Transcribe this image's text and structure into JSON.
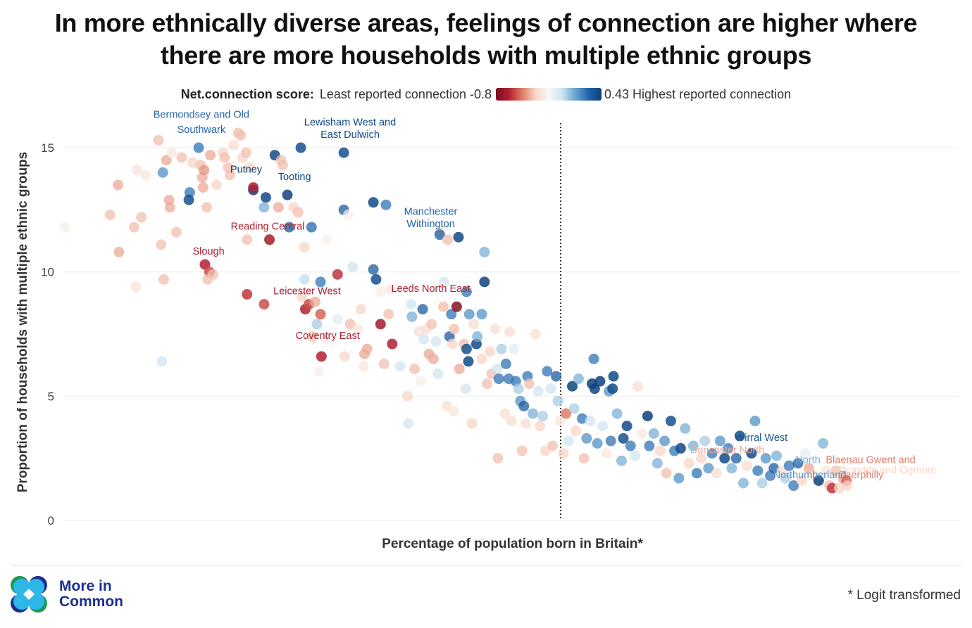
{
  "title_line1": "In more ethnically diverse areas, feelings of connection are higher where",
  "title_line2": "there are more households with multiple ethnic groups",
  "legend": {
    "label": "Net.connection score:",
    "low_text": "Least reported connection -0.8",
    "high_text": "0.43 Highest reported connection",
    "min": -0.8,
    "max": 0.43
  },
  "footer": {
    "logo_line1": "More in",
    "logo_line2": "Common",
    "footnote": "* Logit transformed"
  },
  "colors": {
    "scale": [
      "#7a0c22",
      "#b2202f",
      "#e07d68",
      "#f8d6c5",
      "#f7f7f7",
      "#cfe4f0",
      "#6aa7d0",
      "#2166ac",
      "#0d3f7a"
    ],
    "logo_navy": "#1c2f8c",
    "logo_green": "#1a9a5a",
    "logo_cyan": "#2db7e8"
  },
  "chart_data": {
    "type": "scatter",
    "title": "In more ethnically diverse areas, feelings of connection are higher where there are more households with multiple ethnic groups",
    "xlabel": "Percentage of population born in Britain*",
    "ylabel": "Proportion of households with multiple ethnic groups",
    "x_note": "x is logit-transformed, no tick labels shown; values given as relative position 0-100 along the axis",
    "xlim": [
      0,
      100
    ],
    "ylim": [
      0,
      16
    ],
    "yticks": [
      0,
      5,
      10,
      15
    ],
    "grid": "horizontal",
    "reference_line_x": 55.5,
    "color_variable": "Net.connection score",
    "color_range": [
      -0.8,
      0.43
    ],
    "legend_position": "top-center",
    "point_fields": [
      "x",
      "y",
      "score"
    ],
    "points": [
      [
        0.2,
        11.8,
        -0.05
      ],
      [
        5.2,
        12.3,
        -0.25
      ],
      [
        6.1,
        13.5,
        -0.3
      ],
      [
        6.2,
        10.8,
        -0.3
      ],
      [
        7.9,
        11.8,
        -0.25
      ],
      [
        8.2,
        14.1,
        -0.12
      ],
      [
        8.1,
        9.4,
        -0.12
      ],
      [
        8.7,
        12.2,
        -0.25
      ],
      [
        9.2,
        13.9,
        -0.1
      ],
      [
        10.6,
        15.3,
        -0.25
      ],
      [
        10.9,
        11.1,
        -0.25
      ],
      [
        11.2,
        9.7,
        -0.25
      ],
      [
        11.0,
        6.4,
        0.1
      ],
      [
        11.1,
        14.0,
        0.25
      ],
      [
        11.5,
        14.5,
        -0.3
      ],
      [
        11.8,
        12.9,
        -0.3
      ],
      [
        11.9,
        12.6,
        -0.3
      ],
      [
        12.1,
        14.8,
        -0.1
      ],
      [
        12.6,
        11.6,
        -0.25
      ],
      [
        13.2,
        14.6,
        -0.25
      ],
      [
        14.1,
        13.2,
        0.3
      ],
      [
        14.0,
        12.9,
        0.38
      ],
      [
        14.4,
        14.4,
        -0.2
      ],
      [
        15.1,
        15.0,
        0.3
      ],
      [
        15.3,
        14.3,
        -0.25
      ],
      [
        15.5,
        13.8,
        -0.3
      ],
      [
        15.7,
        14.1,
        -0.35
      ],
      [
        15.6,
        13.4,
        -0.3
      ],
      [
        15.8,
        10.3,
        -0.6
      ],
      [
        16.3,
        10.0,
        -0.5
      ],
      [
        16.1,
        9.7,
        -0.25
      ],
      [
        16.0,
        12.6,
        -0.25
      ],
      [
        16.4,
        14.7,
        -0.3
      ],
      [
        16.7,
        9.9,
        -0.25
      ],
      [
        17.1,
        13.5,
        -0.2
      ],
      [
        17.8,
        14.8,
        -0.2
      ],
      [
        18.0,
        14.6,
        -0.25
      ],
      [
        18.4,
        14.2,
        -0.25
      ],
      [
        18.6,
        13.9,
        -0.25
      ],
      [
        19.0,
        15.1,
        -0.15
      ],
      [
        19.5,
        15.6,
        -0.25
      ],
      [
        19.8,
        15.5,
        -0.25
      ],
      [
        20.0,
        14.6,
        -0.2
      ],
      [
        20.4,
        14.8,
        -0.25
      ],
      [
        20.5,
        9.1,
        -0.55
      ],
      [
        20.5,
        11.3,
        -0.25
      ],
      [
        20.8,
        14.2,
        -0.2
      ],
      [
        21.2,
        13.3,
        0.43
      ],
      [
        21.2,
        13.4,
        -0.6
      ],
      [
        22.6,
        13.0,
        0.4
      ],
      [
        22.4,
        12.6,
        0.2
      ],
      [
        22.4,
        8.7,
        -0.5
      ],
      [
        23.0,
        11.3,
        -0.65
      ],
      [
        23.6,
        14.7,
        0.4
      ],
      [
        24.0,
        12.6,
        -0.3
      ],
      [
        24.3,
        14.5,
        -0.25
      ],
      [
        24.5,
        14.3,
        -0.25
      ],
      [
        25.0,
        13.1,
        0.42
      ],
      [
        25.2,
        11.8,
        0.35
      ],
      [
        25.7,
        12.6,
        -0.2
      ],
      [
        26.2,
        12.4,
        -0.25
      ],
      [
        26.6,
        9.0,
        -0.2
      ],
      [
        26.9,
        9.7,
        0.12
      ],
      [
        26.9,
        11.0,
        -0.2
      ],
      [
        26.5,
        15.0,
        0.38
      ],
      [
        27.0,
        8.5,
        -0.6
      ],
      [
        27.4,
        8.7,
        -0.5
      ],
      [
        27.7,
        11.8,
        0.32
      ],
      [
        27.8,
        7.4,
        -0.25
      ],
      [
        28.1,
        8.8,
        -0.3
      ],
      [
        28.3,
        7.9,
        0.15
      ],
      [
        28.7,
        8.3,
        -0.45
      ],
      [
        28.7,
        9.6,
        0.3
      ],
      [
        28.5,
        6.0,
        -0.05
      ],
      [
        28.8,
        6.6,
        -0.6
      ],
      [
        29.4,
        11.3,
        -0.05
      ],
      [
        29.3,
        7.3,
        -0.05
      ],
      [
        30.6,
        9.9,
        -0.55
      ],
      [
        30.6,
        8.1,
        0.05
      ],
      [
        31.3,
        12.5,
        0.35
      ],
      [
        31.3,
        14.8,
        0.38
      ],
      [
        31.8,
        12.3,
        -0.05
      ],
      [
        31.4,
        6.6,
        -0.2
      ],
      [
        32.0,
        7.9,
        -0.25
      ],
      [
        32.3,
        10.2,
        0.1
      ],
      [
        32.9,
        7.7,
        -0.1
      ],
      [
        33.2,
        8.5,
        -0.2
      ],
      [
        33.5,
        6.2,
        -0.1
      ],
      [
        33.6,
        6.7,
        -0.3
      ],
      [
        33.9,
        6.9,
        -0.3
      ],
      [
        34.6,
        10.1,
        0.35
      ],
      [
        34.6,
        12.8,
        0.4
      ],
      [
        34.9,
        9.7,
        0.38
      ],
      [
        35.4,
        7.9,
        -0.65
      ],
      [
        35.4,
        9.2,
        -0.05
      ],
      [
        35.8,
        6.3,
        -0.25
      ],
      [
        36.0,
        12.7,
        0.3
      ],
      [
        36.7,
        7.1,
        -0.6
      ],
      [
        36.5,
        9.3,
        -0.1
      ],
      [
        36.3,
        8.3,
        -0.25
      ],
      [
        37.6,
        6.2,
        0.1
      ],
      [
        38.4,
        5.0,
        -0.2
      ],
      [
        38.5,
        3.9,
        0.1
      ],
      [
        38.8,
        8.7,
        0.1
      ],
      [
        38.9,
        8.2,
        0.2
      ],
      [
        39.2,
        6.1,
        -0.25
      ],
      [
        39.7,
        7.6,
        -0.15
      ],
      [
        39.9,
        5.6,
        -0.05
      ],
      [
        40.1,
        8.5,
        0.35
      ],
      [
        40.2,
        7.3,
        0.1
      ],
      [
        40.5,
        7.7,
        -0.15
      ],
      [
        40.8,
        6.7,
        -0.3
      ],
      [
        41.1,
        7.9,
        -0.25
      ],
      [
        41.3,
        6.5,
        -0.3
      ],
      [
        41.6,
        7.2,
        0.1
      ],
      [
        41.8,
        5.9,
        0.1
      ],
      [
        42.0,
        11.6,
        -0.2
      ],
      [
        42.0,
        11.5,
        0.35
      ],
      [
        42.4,
        8.6,
        -0.25
      ],
      [
        42.5,
        9.6,
        0.1
      ],
      [
        42.8,
        4.6,
        -0.15
      ],
      [
        42.9,
        11.3,
        -0.25
      ],
      [
        43.1,
        7.4,
        0.35
      ],
      [
        43.3,
        8.3,
        0.3
      ],
      [
        43.4,
        7.1,
        -0.2
      ],
      [
        43.6,
        4.4,
        -0.1
      ],
      [
        43.6,
        7.7,
        -0.25
      ],
      [
        43.9,
        8.6,
        -0.75
      ],
      [
        44.1,
        11.4,
        0.4
      ],
      [
        44.2,
        6.1,
        -0.3
      ],
      [
        44.7,
        7.1,
        -0.25
      ],
      [
        44.9,
        5.3,
        0.1
      ],
      [
        45.0,
        6.9,
        0.38
      ],
      [
        45.0,
        9.2,
        0.3
      ],
      [
        45.2,
        6.4,
        0.4
      ],
      [
        45.3,
        8.3,
        0.25
      ],
      [
        45.6,
        3.9,
        -0.2
      ],
      [
        45.8,
        7.9,
        -0.15
      ],
      [
        46.1,
        7.1,
        0.4
      ],
      [
        46.2,
        7.4,
        0.2
      ],
      [
        46.7,
        8.3,
        0.25
      ],
      [
        46.7,
        6.5,
        -0.2
      ],
      [
        47.0,
        9.6,
        0.42
      ],
      [
        47.0,
        10.8,
        0.2
      ],
      [
        47.3,
        5.5,
        -0.25
      ],
      [
        47.6,
        6.8,
        -0.2
      ],
      [
        47.8,
        5.9,
        -0.25
      ],
      [
        48.2,
        7.7,
        -0.15
      ],
      [
        48.4,
        6.1,
        0.1
      ],
      [
        48.5,
        2.5,
        -0.25
      ],
      [
        48.6,
        5.7,
        0.3
      ],
      [
        48.9,
        6.9,
        0.15
      ],
      [
        49.3,
        4.3,
        -0.15
      ],
      [
        49.4,
        6.3,
        0.3
      ],
      [
        49.7,
        5.7,
        0.3
      ],
      [
        49.8,
        7.6,
        -0.15
      ],
      [
        50.0,
        4.0,
        -0.15
      ],
      [
        50.3,
        6.9,
        0.05
      ],
      [
        50.5,
        5.6,
        0.3
      ],
      [
        50.8,
        5.3,
        0.15
      ],
      [
        51.0,
        4.8,
        0.25
      ],
      [
        51.2,
        2.8,
        -0.25
      ],
      [
        51.4,
        4.6,
        0.35
      ],
      [
        51.6,
        3.9,
        -0.15
      ],
      [
        51.8,
        5.8,
        0.3
      ],
      [
        52.0,
        5.5,
        -0.25
      ],
      [
        52.4,
        4.3,
        0.2
      ],
      [
        52.7,
        7.5,
        -0.15
      ],
      [
        53.0,
        5.2,
        0.1
      ],
      [
        53.2,
        3.8,
        -0.2
      ],
      [
        53.5,
        4.2,
        0.15
      ],
      [
        53.8,
        2.8,
        -0.2
      ],
      [
        54.0,
        6.0,
        0.3
      ],
      [
        54.4,
        5.3,
        0.1
      ],
      [
        54.6,
        3.0,
        -0.25
      ],
      [
        55.0,
        5.8,
        0.35
      ],
      [
        55.2,
        4.8,
        0.15
      ],
      [
        55.4,
        4.0,
        -0.1
      ],
      [
        55.8,
        2.7,
        -0.2
      ],
      [
        56.1,
        4.3,
        -0.4
      ],
      [
        56.4,
        3.2,
        0.1
      ],
      [
        56.8,
        5.4,
        0.42
      ],
      [
        57.0,
        4.5,
        0.15
      ],
      [
        57.2,
        3.6,
        -0.2
      ],
      [
        57.5,
        5.7,
        0.2
      ],
      [
        57.9,
        4.1,
        0.3
      ],
      [
        58.1,
        2.5,
        -0.25
      ],
      [
        58.4,
        3.3,
        0.25
      ],
      [
        58.8,
        4.0,
        0.1
      ],
      [
        59.0,
        5.5,
        0.43
      ],
      [
        59.2,
        6.5,
        0.3
      ],
      [
        59.3,
        5.3,
        0.42
      ],
      [
        59.6,
        3.1,
        0.25
      ],
      [
        59.9,
        5.6,
        0.42
      ],
      [
        60.2,
        3.8,
        0.1
      ],
      [
        60.6,
        2.7,
        -0.1
      ],
      [
        60.9,
        5.2,
        0.25
      ],
      [
        61.1,
        3.2,
        0.3
      ],
      [
        61.3,
        5.3,
        0.4
      ],
      [
        61.4,
        5.8,
        0.4
      ],
      [
        61.8,
        4.3,
        0.2
      ],
      [
        62.3,
        2.4,
        0.2
      ],
      [
        62.5,
        3.3,
        0.38
      ],
      [
        62.9,
        3.8,
        0.4
      ],
      [
        63.3,
        3.0,
        0.3
      ],
      [
        63.8,
        2.6,
        0.1
      ],
      [
        64.1,
        5.4,
        -0.15
      ],
      [
        64.6,
        3.5,
        -0.1
      ],
      [
        65.2,
        4.2,
        0.43
      ],
      [
        65.4,
        3.0,
        0.3
      ],
      [
        65.9,
        3.5,
        0.2
      ],
      [
        66.3,
        2.3,
        0.2
      ],
      [
        66.6,
        2.8,
        -0.2
      ],
      [
        67.1,
        3.2,
        0.25
      ],
      [
        67.3,
        1.9,
        -0.25
      ],
      [
        67.8,
        4.0,
        0.38
      ],
      [
        68.2,
        2.8,
        0.3
      ],
      [
        68.7,
        1.7,
        0.25
      ],
      [
        68.9,
        2.9,
        0.4
      ],
      [
        69.4,
        3.7,
        0.2
      ],
      [
        69.8,
        2.3,
        -0.2
      ],
      [
        70.3,
        3.0,
        0.2
      ],
      [
        70.7,
        1.9,
        0.3
      ],
      [
        71.2,
        2.5,
        -0.2
      ],
      [
        71.6,
        3.2,
        0.15
      ],
      [
        72.0,
        2.1,
        0.25
      ],
      [
        72.4,
        2.7,
        0.3
      ],
      [
        72.9,
        1.9,
        -0.15
      ],
      [
        73.3,
        3.2,
        0.25
      ],
      [
        73.8,
        2.5,
        0.4
      ],
      [
        74.2,
        2.9,
        0.3
      ],
      [
        74.6,
        2.1,
        0.2
      ],
      [
        75.1,
        2.5,
        0.35
      ],
      [
        75.5,
        3.4,
        0.4
      ],
      [
        75.9,
        1.5,
        0.2
      ],
      [
        76.3,
        2.2,
        -0.15
      ],
      [
        76.8,
        2.7,
        0.4
      ],
      [
        77.2,
        4.0,
        0.25
      ],
      [
        77.5,
        2.0,
        0.3
      ],
      [
        78.0,
        1.5,
        0.15
      ],
      [
        78.4,
        2.5,
        0.25
      ],
      [
        78.9,
        1.8,
        0.3
      ],
      [
        79.3,
        2.1,
        0.35
      ],
      [
        79.6,
        2.6,
        0.2
      ],
      [
        80.2,
        2.0,
        -0.15
      ],
      [
        80.6,
        1.7,
        0.15
      ],
      [
        81.0,
        2.2,
        0.3
      ],
      [
        81.5,
        1.4,
        0.3
      ],
      [
        82.0,
        2.3,
        0.35
      ],
      [
        82.4,
        1.6,
        -0.2
      ],
      [
        82.8,
        2.7,
        0.05
      ],
      [
        83.2,
        2.1,
        -0.3
      ],
      [
        83.8,
        1.8,
        -0.15
      ],
      [
        84.3,
        1.6,
        0.43
      ],
      [
        84.8,
        3.1,
        0.2
      ],
      [
        85.1,
        2.0,
        -0.1
      ],
      [
        85.5,
        1.4,
        -0.25
      ],
      [
        85.8,
        1.3,
        -0.55
      ],
      [
        86.2,
        2.0,
        -0.25
      ],
      [
        86.6,
        1.3,
        -0.2
      ],
      [
        87.0,
        1.7,
        -0.3
      ],
      [
        87.4,
        1.6,
        -0.45
      ],
      [
        87.5,
        1.4,
        -0.2
      ]
    ],
    "annotations": [
      {
        "text": "Bermondsey and Old",
        "x": 15.4,
        "y": 16.2,
        "score": 0.33
      },
      {
        "text": "Southwark",
        "x": 15.4,
        "y": 15.6,
        "score": 0.33
      },
      {
        "text": "Lewisham West and",
        "x": 32,
        "y": 15.9,
        "score": 0.4
      },
      {
        "text": "East Dulwich",
        "x": 32,
        "y": 15.4,
        "score": 0.4
      },
      {
        "text": "Putney",
        "x": 20.4,
        "y": 14.0,
        "score": 0.43
      },
      {
        "text": "Tooting",
        "x": 25.8,
        "y": 13.7,
        "score": 0.42
      },
      {
        "text": "Manchester",
        "x": 41,
        "y": 12.3,
        "score": 0.33
      },
      {
        "text": "Withington",
        "x": 41,
        "y": 11.8,
        "score": 0.33
      },
      {
        "text": "Reading Central",
        "x": 22.8,
        "y": 11.7,
        "score": -0.62
      },
      {
        "text": "Slough",
        "x": 16.2,
        "y": 10.7,
        "score": -0.62
      },
      {
        "text": "Leicester West",
        "x": 27.2,
        "y": 9.1,
        "score": -0.62
      },
      {
        "text": "Leeds North East",
        "x": 41,
        "y": 9.2,
        "score": -0.62
      },
      {
        "text": "Coventry East",
        "x": 29.5,
        "y": 7.3,
        "score": -0.62
      },
      {
        "text": "Wirral West",
        "x": 77.9,
        "y": 3.2,
        "score": 0.38
      },
      {
        "text": "Doncaster North",
        "x": 74.1,
        "y": 2.7,
        "score": -0.3
      },
      {
        "text": "North",
        "x": 83.1,
        "y": 2.3,
        "score": 0.2
      },
      {
        "text": "Blaenau Gwent and",
        "x": 90.1,
        "y": 2.3,
        "score": -0.4
      },
      {
        "text": "Rhondda and Ogmore",
        "x": 91.8,
        "y": 1.9,
        "score": -0.2
      },
      {
        "text": "Northumberland",
        "x": 83.3,
        "y": 1.7,
        "score": 0.25
      },
      {
        "text": "Caerphilly",
        "x": 89.0,
        "y": 1.7,
        "score": -0.4
      }
    ]
  }
}
